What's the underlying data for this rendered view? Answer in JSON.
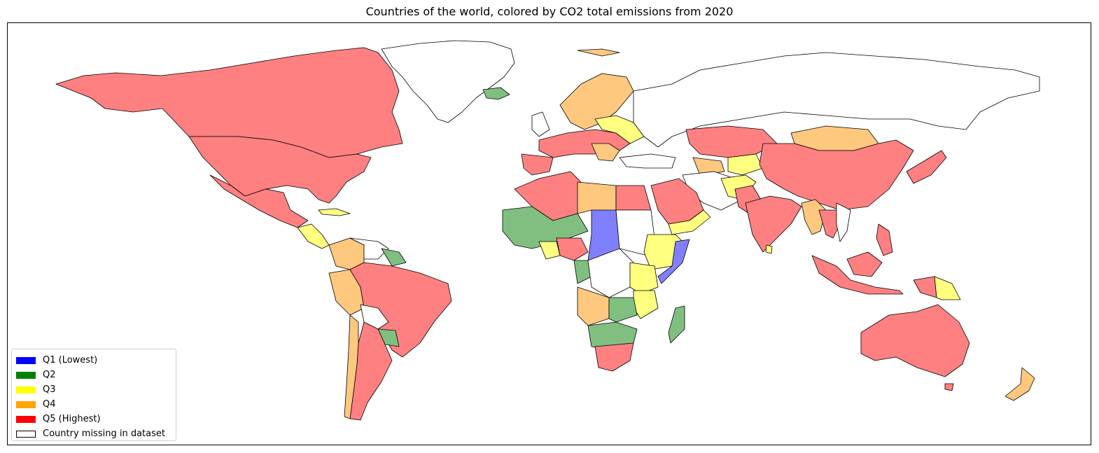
{
  "title": "Countries of the world, colored by CO2 total emissions from 2020",
  "colors": {
    "q1": "#8080ff",
    "q2": "#80bf80",
    "q3": "#ffff80",
    "q4": "#ffc87f",
    "q5": "#ff8080",
    "missing": "#ffffff"
  },
  "legend": {
    "items": [
      {
        "label": "Q1 (Lowest)",
        "color": "#0000ff"
      },
      {
        "label": "Q2",
        "color": "#008000"
      },
      {
        "label": "Q3",
        "color": "#ffff00"
      },
      {
        "label": "Q4",
        "color": "#ffa500"
      },
      {
        "label": "Q5 (Highest)",
        "color": "#ff0000"
      },
      {
        "label": "Country missing in dataset",
        "color": "#ffffff"
      }
    ]
  }
}
